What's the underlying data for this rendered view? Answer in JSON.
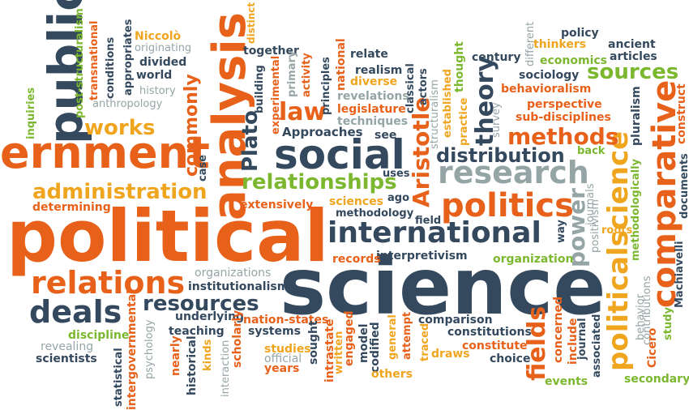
{
  "palette": {
    "orange": "#e8611a",
    "navy": "#34495e",
    "green": "#7cb82f",
    "gold": "#f0a51f",
    "gray": "#95a5a6",
    "red": "#c0392b"
  },
  "words": [
    {
      "id": "political",
      "text": "political",
      "color": "orange"
    },
    {
      "id": "science",
      "text": "science",
      "color": "navy"
    },
    {
      "id": "ernment",
      "text": "ernment",
      "color": "orange"
    },
    {
      "id": "analysis",
      "text": "analysis",
      "color": "orange"
    },
    {
      "id": "public",
      "text": "public",
      "color": "navy"
    },
    {
      "id": "social",
      "text": "social",
      "color": "navy"
    },
    {
      "id": "international",
      "text": "international",
      "color": "navy"
    },
    {
      "id": "politics",
      "text": "politics",
      "color": "orange"
    },
    {
      "id": "relations",
      "text": "relations",
      "color": "orange"
    },
    {
      "id": "research",
      "text": "research",
      "color": "gray"
    },
    {
      "id": "comparative",
      "text": "comparative",
      "color": "orange"
    },
    {
      "id": "politicalscience-vertical",
      "text": "politicalscience",
      "color": "gold"
    },
    {
      "id": "deals",
      "text": "deals",
      "color": "navy"
    },
    {
      "id": "relationships",
      "text": "relationships",
      "color": "green"
    },
    {
      "id": "administration",
      "text": "administration",
      "color": "gold"
    },
    {
      "id": "resources",
      "text": "resources",
      "color": "navy"
    },
    {
      "id": "methods",
      "text": "methods",
      "color": "orange"
    },
    {
      "id": "distribution",
      "text": "distribution",
      "color": "navy"
    },
    {
      "id": "works",
      "text": "works",
      "color": "gold"
    },
    {
      "id": "sources",
      "text": "sources",
      "color": "green"
    },
    {
      "id": "theory",
      "text": "theory",
      "color": "navy"
    },
    {
      "id": "aristotle",
      "text": "Aristotle",
      "color": "orange"
    },
    {
      "id": "commonly",
      "text": "commonly",
      "color": "orange"
    },
    {
      "id": "plato",
      "text": "Plato",
      "color": "navy"
    },
    {
      "id": "law",
      "text": "law",
      "color": "orange"
    },
    {
      "id": "fields",
      "text": "fields",
      "color": "orange"
    },
    {
      "id": "power",
      "text": "power",
      "color": "gray"
    },
    {
      "id": "legislature",
      "text": "legislature",
      "color": "orange"
    },
    {
      "id": "approaches",
      "text": "Approaches",
      "color": "navy"
    },
    {
      "id": "techniques",
      "text": "techniques",
      "color": "gray"
    },
    {
      "id": "revelations",
      "text": "revelations",
      "color": "gray"
    },
    {
      "id": "realism",
      "text": "realism",
      "color": "navy"
    },
    {
      "id": "diverse",
      "text": "diverse",
      "color": "gold"
    },
    {
      "id": "relate",
      "text": "relate",
      "color": "navy"
    },
    {
      "id": "together",
      "text": "together",
      "color": "navy"
    },
    {
      "id": "national",
      "text": "national",
      "color": "orange"
    },
    {
      "id": "principles",
      "text": "principles",
      "color": "navy"
    },
    {
      "id": "activity",
      "text": "activity",
      "color": "orange"
    },
    {
      "id": "primary",
      "text": "primary",
      "color": "gray"
    },
    {
      "id": "building",
      "text": "building",
      "color": "navy"
    },
    {
      "id": "experimental",
      "text": "experimental",
      "color": "orange"
    },
    {
      "id": "distinct",
      "text": "distinct",
      "color": "gold"
    },
    {
      "id": "niccolo",
      "text": "Niccolò",
      "color": "gold"
    },
    {
      "id": "originating",
      "text": "originating",
      "color": "gray"
    },
    {
      "id": "divided",
      "text": "divided",
      "color": "navy"
    },
    {
      "id": "world",
      "text": "world",
      "color": "navy"
    },
    {
      "id": "history",
      "text": "history",
      "color": "gray"
    },
    {
      "id": "anthropology",
      "text": "anthropology",
      "color": "gray"
    },
    {
      "id": "appropriates",
      "text": "appropriates",
      "color": "navy"
    },
    {
      "id": "conditions",
      "text": "conditions",
      "color": "navy"
    },
    {
      "id": "transnational",
      "text": "transnational",
      "color": "orange"
    },
    {
      "id": "post-structuralism",
      "text": "post-structuralism",
      "color": "green"
    },
    {
      "id": "inquiries",
      "text": "inquiries",
      "color": "green"
    },
    {
      "id": "policy",
      "text": "policy",
      "color": "navy"
    },
    {
      "id": "thinkers",
      "text": "thinkers",
      "color": "gold"
    },
    {
      "id": "ancient",
      "text": "ancient",
      "color": "navy"
    },
    {
      "id": "articles",
      "text": "articles",
      "color": "navy"
    },
    {
      "id": "different",
      "text": "different",
      "color": "gray"
    },
    {
      "id": "economics",
      "text": "economics",
      "color": "green"
    },
    {
      "id": "century",
      "text": "century",
      "color": "navy"
    },
    {
      "id": "sociology",
      "text": "sociology",
      "color": "navy"
    },
    {
      "id": "behavioralism",
      "text": "behavioralism",
      "color": "orange"
    },
    {
      "id": "perspective",
      "text": "perspective",
      "color": "orange"
    },
    {
      "id": "sub-disciplines",
      "text": "sub-disciplines",
      "color": "orange"
    },
    {
      "id": "pluralism",
      "text": "pluralism",
      "color": "navy"
    },
    {
      "id": "construct",
      "text": "construct",
      "color": "orange"
    },
    {
      "id": "survey",
      "text": "survey",
      "color": "gray"
    },
    {
      "id": "thought",
      "text": "thought",
      "color": "green"
    },
    {
      "id": "practice",
      "text": "practice",
      "color": "gold"
    },
    {
      "id": "established",
      "text": "established",
      "color": "gold"
    },
    {
      "id": "structuralism",
      "text": "structuralism",
      "color": "gray"
    },
    {
      "id": "classical",
      "text": "classical",
      "color": "navy"
    },
    {
      "id": "actors",
      "text": "actors",
      "color": "navy"
    },
    {
      "id": "see",
      "text": "see",
      "color": "navy"
    },
    {
      "id": "uses",
      "text": "uses",
      "color": "navy"
    },
    {
      "id": "back",
      "text": "back",
      "color": "green"
    },
    {
      "id": "documents",
      "text": "documents",
      "color": "navy"
    },
    {
      "id": "sciences",
      "text": "sciences",
      "color": "gold"
    },
    {
      "id": "ago",
      "text": "ago",
      "color": "navy"
    },
    {
      "id": "methodology",
      "text": "methodology",
      "color": "navy"
    },
    {
      "id": "extensively",
      "text": "extensively",
      "color": "orange"
    },
    {
      "id": "field",
      "text": "field",
      "color": "navy"
    },
    {
      "id": "case",
      "text": "case",
      "color": "navy"
    },
    {
      "id": "determining",
      "text": "determining",
      "color": "orange"
    },
    {
      "id": "way",
      "text": "way",
      "color": "navy"
    },
    {
      "id": "journals",
      "text": "journals",
      "color": "gray"
    },
    {
      "id": "positivism",
      "text": "positivism",
      "color": "gray"
    },
    {
      "id": "roots",
      "text": "roots",
      "color": "gold"
    },
    {
      "id": "methodologically",
      "text": "methodologically",
      "color": "green"
    },
    {
      "id": "organization",
      "text": "organization",
      "color": "green"
    },
    {
      "id": "interpretivism",
      "text": "interpretivism",
      "color": "navy"
    },
    {
      "id": "records",
      "text": "records",
      "color": "orange"
    },
    {
      "id": "organizations",
      "text": "organizations",
      "color": "gray"
    },
    {
      "id": "institutionalism",
      "text": "institutionalism",
      "color": "navy"
    },
    {
      "id": "underlying",
      "text": "underlying",
      "color": "navy"
    },
    {
      "id": "nation-states",
      "text": "nation-states",
      "color": "orange"
    },
    {
      "id": "systems",
      "text": "systems",
      "color": "navy"
    },
    {
      "id": "teaching",
      "text": "teaching",
      "color": "navy"
    },
    {
      "id": "discipline",
      "text": "discipline",
      "color": "green"
    },
    {
      "id": "revealing",
      "text": "revealing",
      "color": "gray"
    },
    {
      "id": "scientists",
      "text": "scientists",
      "color": "navy"
    },
    {
      "id": "psychology",
      "text": "psychology",
      "color": "gray"
    },
    {
      "id": "intergovernmental",
      "text": "intergovernmental",
      "color": "orange"
    },
    {
      "id": "statistical",
      "text": "statistical",
      "color": "navy"
    },
    {
      "id": "historical",
      "text": "historical",
      "color": "navy"
    },
    {
      "id": "nearly",
      "text": "nearly",
      "color": "orange"
    },
    {
      "id": "kinds",
      "text": "kinds",
      "color": "gold"
    },
    {
      "id": "interaction",
      "text": "interaction",
      "color": "gray"
    },
    {
      "id": "scholarly",
      "text": "scholarly",
      "color": "orange"
    },
    {
      "id": "studies",
      "text": "studies",
      "color": "gold"
    },
    {
      "id": "official",
      "text": "official",
      "color": "gray"
    },
    {
      "id": "years",
      "text": "years",
      "color": "orange"
    },
    {
      "id": "sought",
      "text": "sought",
      "color": "navy"
    },
    {
      "id": "intrastate",
      "text": "intrastate",
      "color": "orange"
    },
    {
      "id": "written",
      "text": "written",
      "color": "gold"
    },
    {
      "id": "engaged",
      "text": "engaged",
      "color": "orange"
    },
    {
      "id": "model",
      "text": "model",
      "color": "navy"
    },
    {
      "id": "codified",
      "text": "codified",
      "color": "navy"
    },
    {
      "id": "general",
      "text": "general",
      "color": "gold"
    },
    {
      "id": "attempt",
      "text": "attempt",
      "color": "orange"
    },
    {
      "id": "others",
      "text": "others",
      "color": "gold"
    },
    {
      "id": "traced",
      "text": "traced",
      "color": "gold"
    },
    {
      "id": "comparison",
      "text": "comparison",
      "color": "navy"
    },
    {
      "id": "constitutions",
      "text": "constitutions",
      "color": "navy"
    },
    {
      "id": "draws",
      "text": "draws",
      "color": "gold"
    },
    {
      "id": "constitute",
      "text": "constitute",
      "color": "orange"
    },
    {
      "id": "choice",
      "text": "choice",
      "color": "navy"
    },
    {
      "id": "concerned",
      "text": "concerned",
      "color": "orange"
    },
    {
      "id": "include",
      "text": "include",
      "color": "orange"
    },
    {
      "id": "journal",
      "text": "journal",
      "color": "navy"
    },
    {
      "id": "events",
      "text": "events",
      "color": "green"
    },
    {
      "id": "associated",
      "text": "associated",
      "color": "navy"
    },
    {
      "id": "behavior",
      "text": "behavior",
      "color": "gray"
    },
    {
      "id": "contributions",
      "text": "contributions",
      "color": "gray"
    },
    {
      "id": "cicero",
      "text": "Cicero",
      "color": "orange"
    },
    {
      "id": "study",
      "text": "study",
      "color": "green"
    },
    {
      "id": "machiavelli",
      "text": "Machiavelli",
      "color": "navy"
    },
    {
      "id": "secondary",
      "text": "secondary",
      "color": "green"
    }
  ]
}
